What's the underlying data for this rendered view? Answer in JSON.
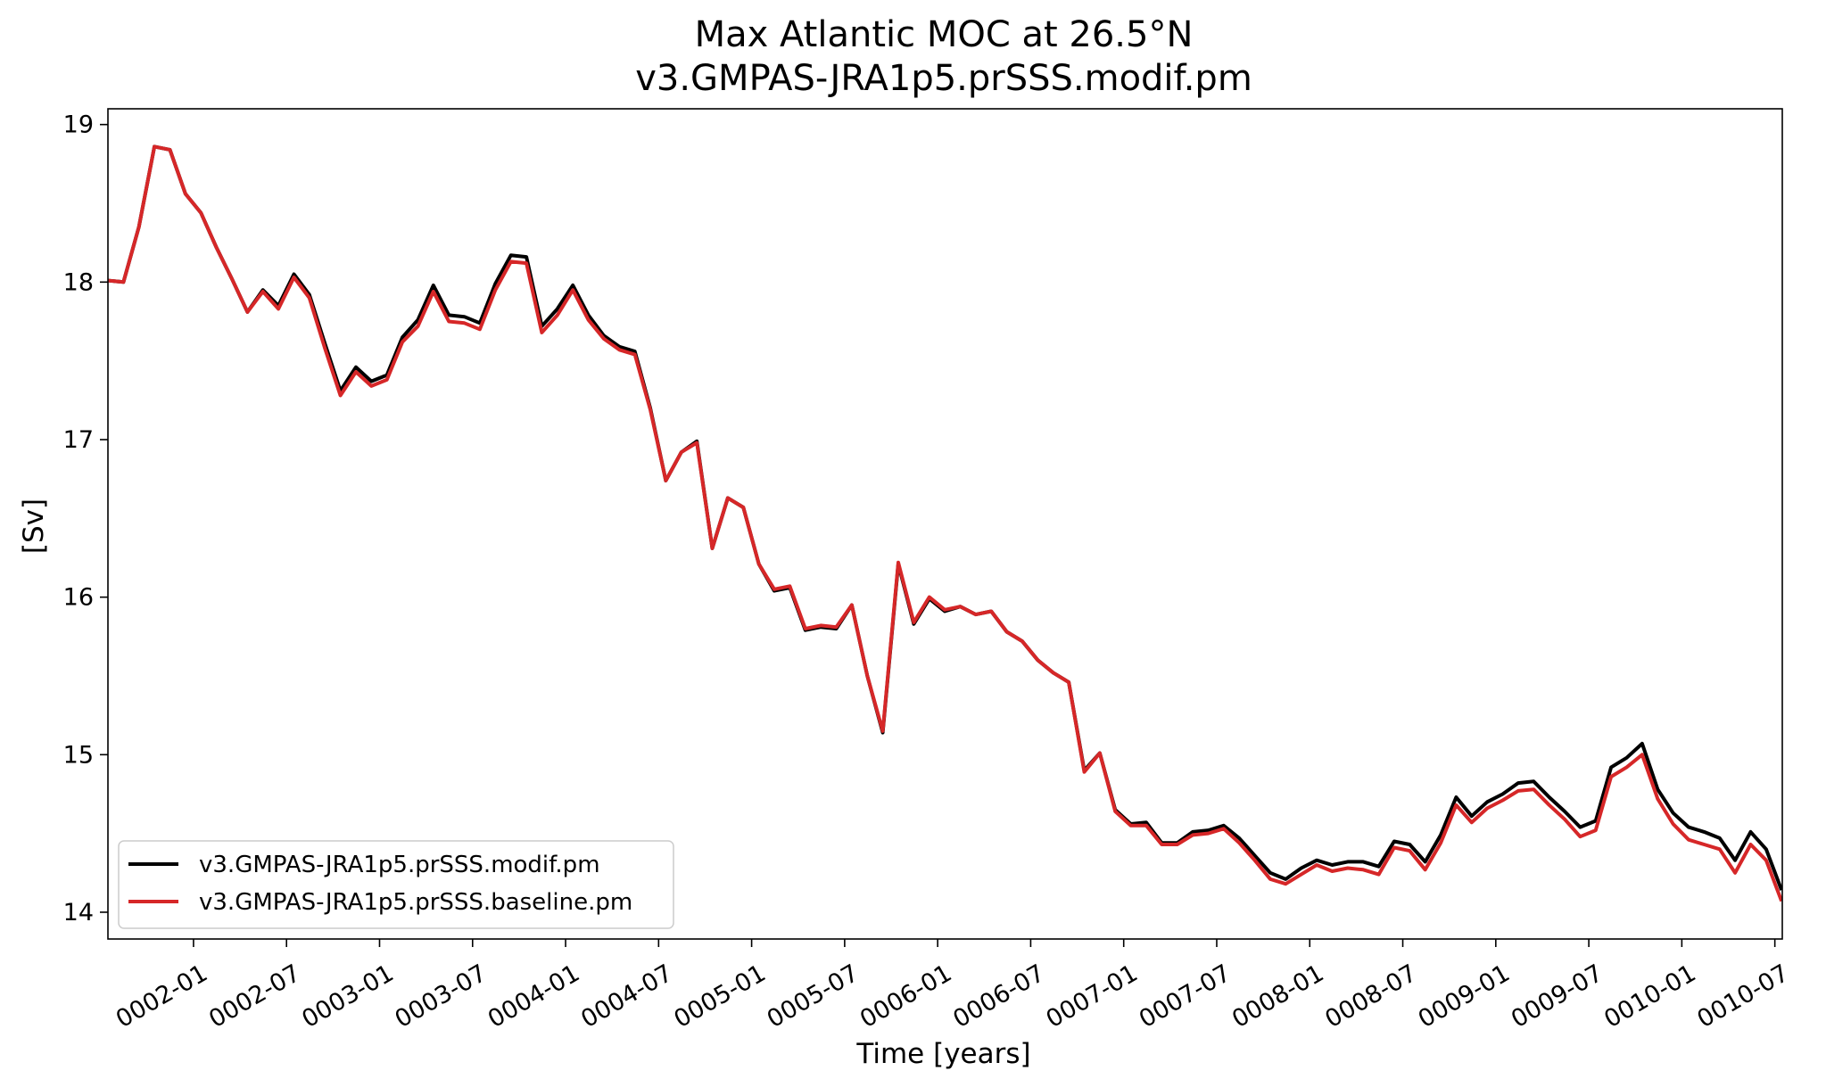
{
  "chart_data": {
    "type": "line",
    "title": "Max Atlantic MOC at 26.5°N",
    "subtitle": "v3.GMPAS-JRA1p5.prSSS.modif.pm",
    "xlabel": "Time [years]",
    "ylabel": "[Sv]",
    "ylim": [
      13.83,
      19.1
    ],
    "xlim": [
      1.54,
      10.54
    ],
    "yticks": [
      14,
      15,
      16,
      17,
      18,
      19
    ],
    "ytick_labels": [
      "14",
      "15",
      "16",
      "17",
      "18",
      "19"
    ],
    "xticks": [
      2.0,
      2.5,
      3.0,
      3.5,
      4.0,
      4.5,
      5.0,
      5.5,
      6.0,
      6.5,
      7.0,
      7.5,
      8.0,
      8.5,
      9.0,
      9.5,
      10.0,
      10.5
    ],
    "xtick_labels": [
      "0002-01",
      "0002-07",
      "0003-01",
      "0003-07",
      "0004-01",
      "0004-07",
      "0005-01",
      "0005-07",
      "0006-01",
      "0006-07",
      "0007-01",
      "0007-07",
      "0008-01",
      "0008-07",
      "0009-01",
      "0009-07",
      "0010-01",
      "0010-07"
    ],
    "grid": false,
    "legend_position": "lower-left",
    "x_start": 1.54,
    "x_step": 0.0833,
    "series": [
      {
        "name": "v3.GMPAS-JRA1p5.prSSS.modif.pm",
        "color": "#000000",
        "values": [
          18.01,
          18.0,
          18.35,
          18.86,
          18.84,
          18.56,
          18.44,
          18.22,
          18.02,
          17.81,
          17.95,
          17.85,
          18.05,
          17.92,
          17.61,
          17.31,
          17.46,
          17.37,
          17.41,
          17.65,
          17.76,
          17.98,
          17.79,
          17.78,
          17.74,
          17.99,
          18.17,
          18.16,
          17.72,
          17.83,
          17.98,
          17.79,
          17.66,
          17.59,
          17.56,
          17.2,
          16.74,
          16.92,
          16.99,
          16.31,
          16.63,
          16.57,
          16.21,
          16.04,
          16.06,
          15.79,
          15.81,
          15.8,
          15.95,
          15.5,
          15.14,
          16.21,
          15.83,
          15.99,
          15.91,
          15.94,
          15.89,
          15.91,
          15.78,
          15.72,
          15.6,
          15.52,
          15.46,
          14.9,
          15.01,
          14.65,
          14.56,
          14.57,
          14.44,
          14.44,
          14.51,
          14.52,
          14.55,
          14.47,
          14.36,
          14.25,
          14.21,
          14.28,
          14.33,
          14.3,
          14.32,
          14.32,
          14.29,
          14.45,
          14.43,
          14.32,
          14.49,
          14.73,
          14.61,
          14.7,
          14.75,
          14.82,
          14.83,
          14.73,
          14.64,
          14.54,
          14.58,
          14.92,
          14.98,
          15.07,
          14.78,
          14.63,
          14.54,
          14.51,
          14.47,
          14.33,
          14.51,
          14.4,
          14.14
        ]
      },
      {
        "name": "v3.GMPAS-JRA1p5.prSSS.baseline.pm",
        "color": "#d62728",
        "values": [
          18.01,
          18.0,
          18.35,
          18.86,
          18.84,
          18.56,
          18.44,
          18.22,
          18.02,
          17.81,
          17.94,
          17.83,
          18.03,
          17.9,
          17.58,
          17.28,
          17.43,
          17.34,
          17.38,
          17.62,
          17.72,
          17.94,
          17.75,
          17.74,
          17.7,
          17.95,
          18.13,
          18.12,
          17.68,
          17.79,
          17.95,
          17.76,
          17.64,
          17.57,
          17.54,
          17.19,
          16.74,
          16.92,
          16.98,
          16.31,
          16.63,
          16.57,
          16.21,
          16.05,
          16.07,
          15.8,
          15.82,
          15.81,
          15.95,
          15.5,
          15.15,
          16.22,
          15.84,
          16.0,
          15.92,
          15.94,
          15.89,
          15.91,
          15.78,
          15.72,
          15.6,
          15.52,
          15.46,
          14.89,
          15.01,
          14.64,
          14.55,
          14.55,
          14.43,
          14.43,
          14.49,
          14.5,
          14.53,
          14.44,
          14.33,
          14.21,
          14.18,
          14.24,
          14.3,
          14.26,
          14.28,
          14.27,
          14.24,
          14.41,
          14.39,
          14.27,
          14.44,
          14.68,
          14.57,
          14.66,
          14.71,
          14.77,
          14.78,
          14.68,
          14.59,
          14.48,
          14.52,
          14.86,
          14.92,
          15.0,
          14.72,
          14.56,
          14.46,
          14.43,
          14.4,
          14.25,
          14.43,
          14.33,
          14.07
        ]
      }
    ]
  }
}
